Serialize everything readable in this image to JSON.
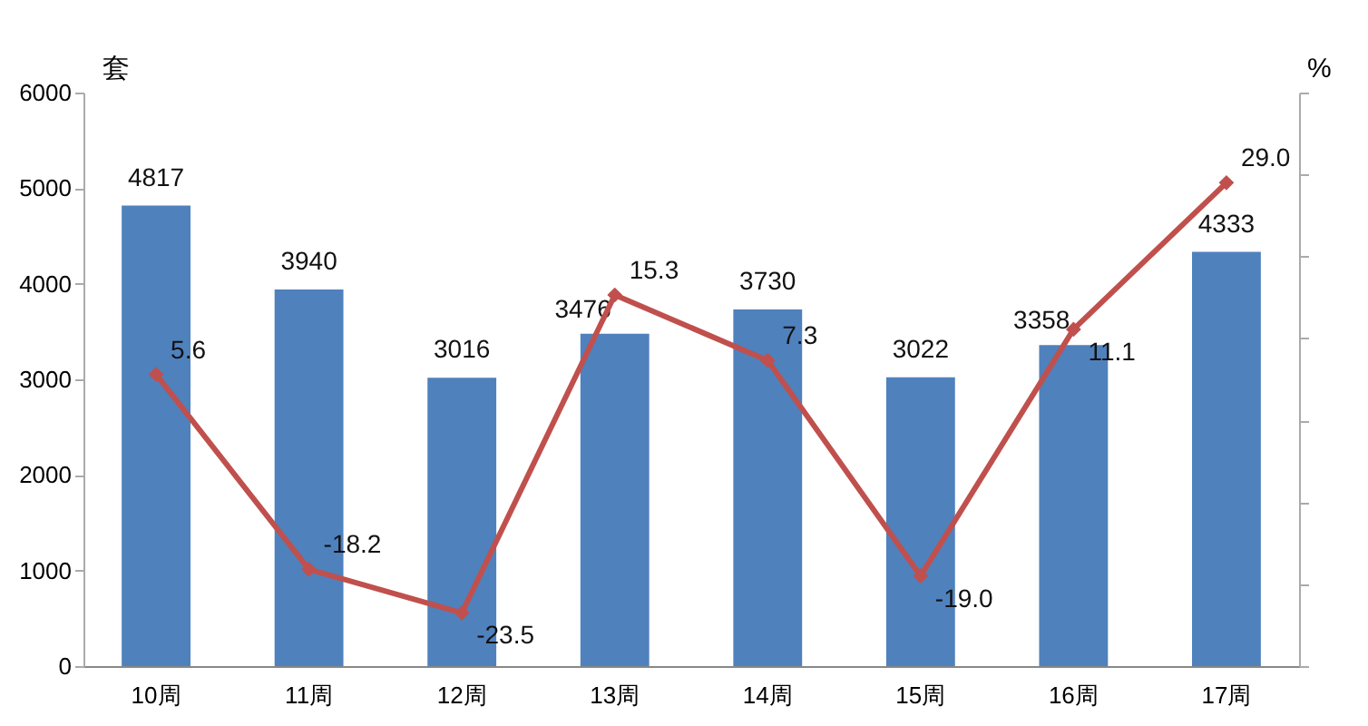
{
  "chart_data": {
    "type": "bar",
    "ylabel": "套",
    "y2label": "%",
    "categories": [
      "10周",
      "11周",
      "12周",
      "13周",
      "14周",
      "15周",
      "16周",
      "17周"
    ],
    "series": [
      {
        "color": "#4f81bd",
        "values": [
          4817,
          3940,
          3016,
          3476,
          3730,
          3022,
          3358,
          4333
        ],
        "value_labels": [
          "4817",
          "3940",
          "3016",
          "3476",
          "3730",
          "3022",
          "3358",
          "4333"
        ]
      },
      {
        "type": "line",
        "axis": "y2",
        "color": "#c0504d",
        "marker": "diamond",
        "line_style": "solid",
        "values": [
          5.6,
          -18.2,
          -23.5,
          15.3,
          7.3,
          -19.0,
          11.1,
          29.0
        ],
        "value_labels": [
          "5.6",
          "-18.2",
          "-23.5",
          "15.3",
          "7.3",
          "-19.0",
          "11.1",
          "29.0"
        ]
      }
    ],
    "ylim": [
      0,
      6000
    ],
    "yticks": [
      0,
      1000,
      2000,
      3000,
      4000,
      5000,
      6000
    ],
    "y2lim": [
      -30,
      40
    ],
    "y2ticks": [
      {
        "value": -30,
        "label": null
      },
      {
        "value": -20,
        "label": null
      },
      {
        "value": -10,
        "label": null
      },
      {
        "value": 0,
        "label": null
      },
      {
        "value": 10,
        "label": null
      },
      {
        "value": 20,
        "label": null
      },
      {
        "value": 30,
        "label": null
      },
      {
        "value": 40,
        "label": null
      }
    ],
    "grid": false
  }
}
